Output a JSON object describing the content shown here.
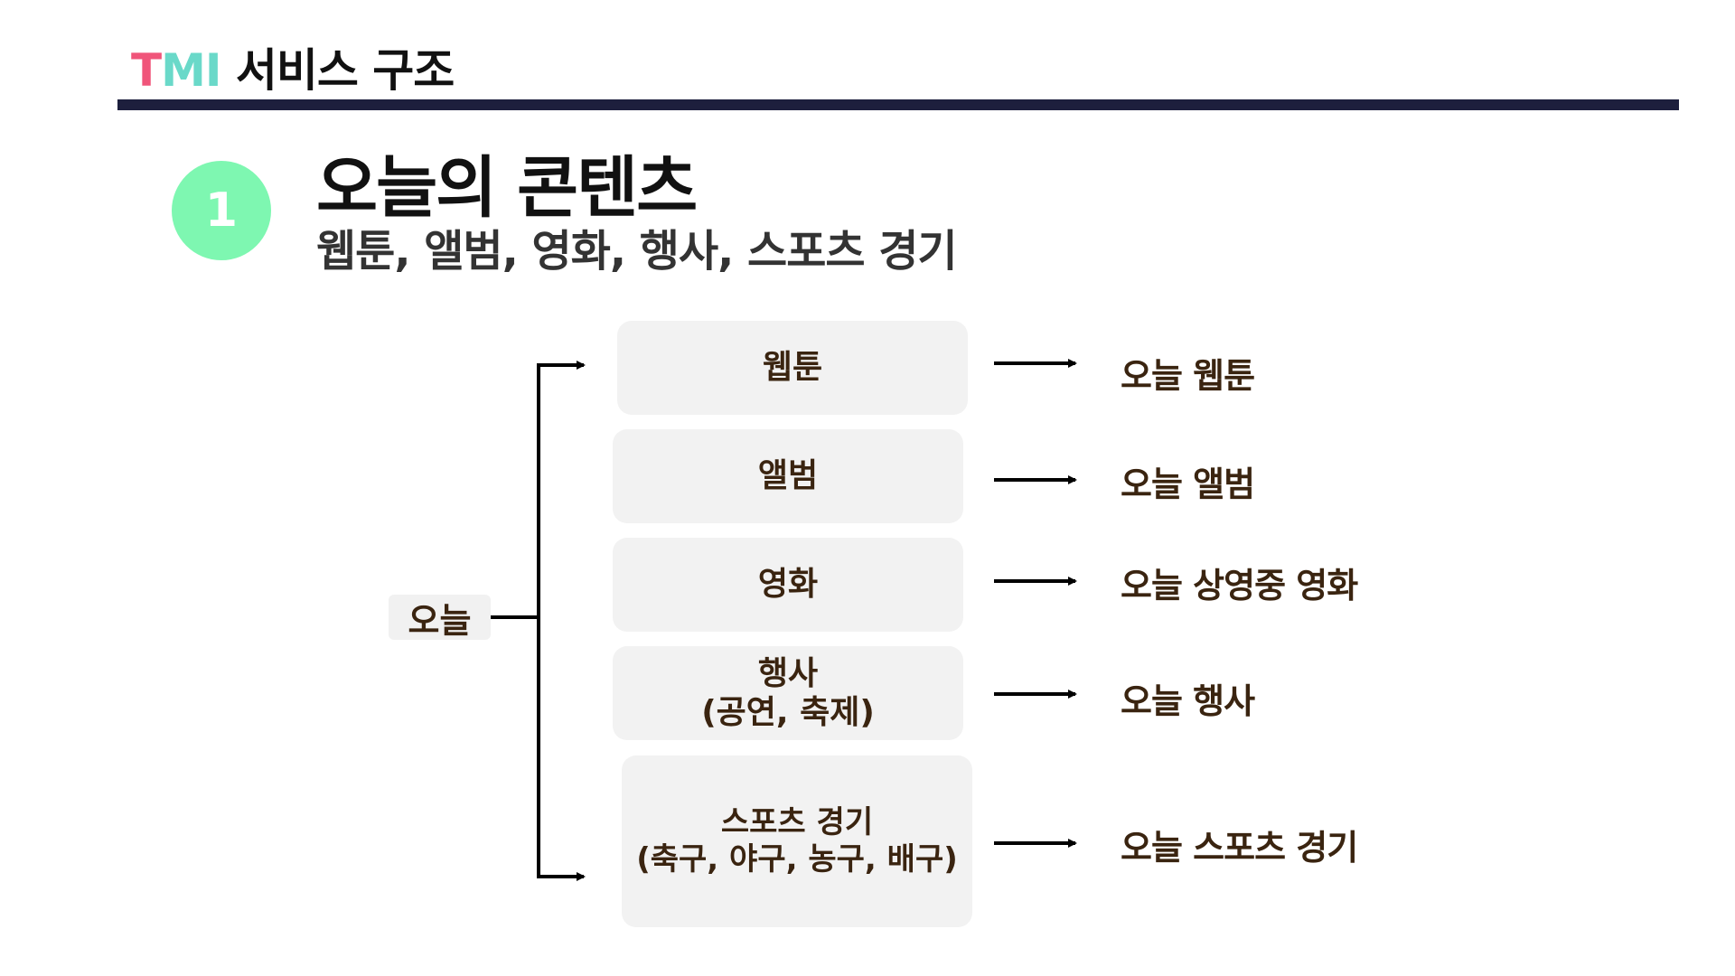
{
  "header": {
    "brand_t": "T",
    "brand_mi": "MI",
    "title": " 서비스 구조"
  },
  "section": {
    "number": "1",
    "title": "오늘의 콘텐츠",
    "subtitle": "웹툰, 앨범, 영화, 행사, 스포츠 경기"
  },
  "root": {
    "label": "오늘"
  },
  "categories": [
    {
      "label": "웹툰",
      "sub": "",
      "result": "오늘 웹툰"
    },
    {
      "label": "앨범",
      "sub": "",
      "result": "오늘 앨범"
    },
    {
      "label": "영화",
      "sub": "",
      "result": "오늘 상영중 영화"
    },
    {
      "label": "행사",
      "sub": "(공연, 축제)",
      "result": "오늘 행사"
    },
    {
      "label": "스포츠 경기",
      "sub": "(축구, 야구, 농구, 배구)",
      "result": "오늘 스포츠 경기"
    }
  ],
  "colors": {
    "header_rule": "#1d1f3d",
    "badge": "#7ef7b1",
    "brand_t": "#f0557a",
    "brand_mi": "#6ad9c9",
    "box_fill": "#f2f2f2",
    "label_text": "#3a2410"
  }
}
